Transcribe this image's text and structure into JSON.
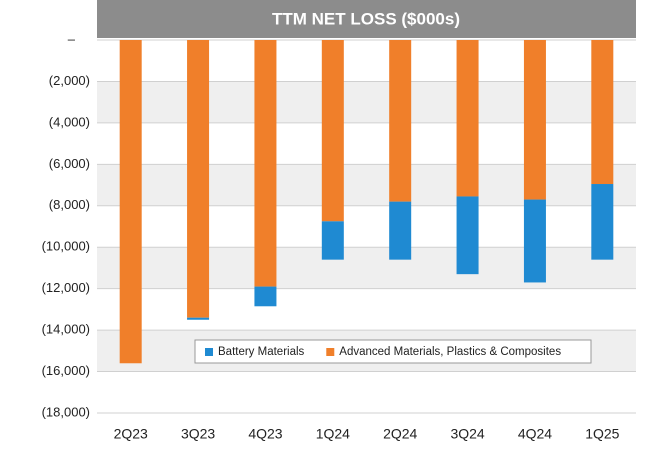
{
  "chart_data": {
    "type": "stacked_bar",
    "title": "TTM NET LOSS ($000s)",
    "categories": [
      "2Q23",
      "3Q23",
      "4Q23",
      "1Q24",
      "2Q24",
      "3Q24",
      "4Q24",
      "1Q25"
    ],
    "series": [
      {
        "name": "Battery Materials",
        "color": "#1f8ad2",
        "values": [
          0,
          -100,
          -950,
          -1850,
          -2800,
          -3750,
          -4000,
          -3650
        ]
      },
      {
        "name": "Advanced Materials, Plastics & Composites",
        "color": "#f07f2a",
        "values": [
          -15600,
          -13400,
          -11900,
          -8750,
          -7800,
          -7550,
          -7700,
          -6950
        ]
      }
    ],
    "stack_order": [
      1,
      0
    ],
    "ylim": [
      0,
      -18000
    ],
    "yticks": [
      {
        "value": 0,
        "label": "–"
      },
      {
        "value": -2000,
        "label": "(2,000)"
      },
      {
        "value": -4000,
        "label": "(4,000)"
      },
      {
        "value": -6000,
        "label": "(6,000)"
      },
      {
        "value": -8000,
        "label": "(8,000)"
      },
      {
        "value": -10000,
        "label": "(10,000)"
      },
      {
        "value": -12000,
        "label": "(12,000)"
      },
      {
        "value": -14000,
        "label": "(14,000)"
      },
      {
        "value": -16000,
        "label": "(16,000)"
      },
      {
        "value": -18000,
        "label": "(18,000)"
      }
    ],
    "grid": true,
    "legend": "bottom"
  }
}
